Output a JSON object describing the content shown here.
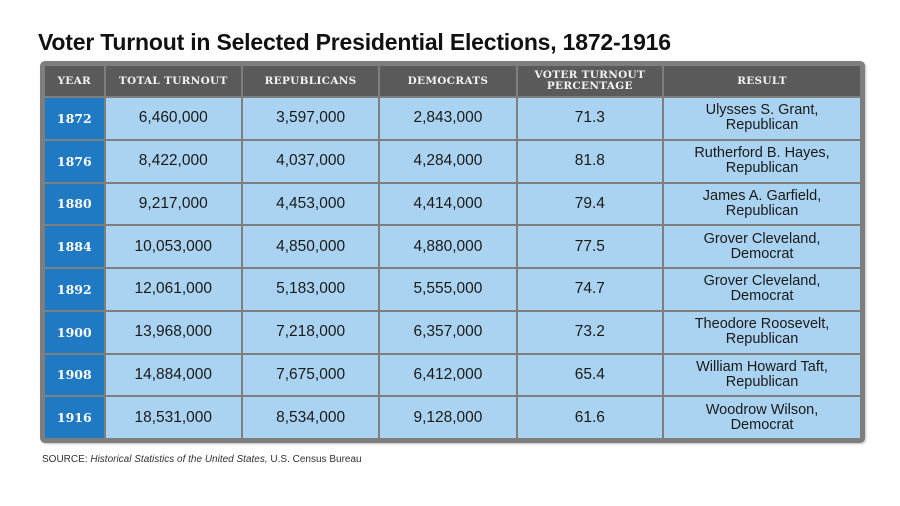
{
  "title": "Voter Turnout in Selected Presidential Elections, 1872-1916",
  "source": {
    "label": "SOURCE:",
    "title": "Historical Statistics of the United States,",
    "publisher": "U.S. Census Bureau"
  },
  "chart_data": {
    "type": "table",
    "title": "Voter Turnout in Selected Presidential Elections, 1872-1916",
    "columns": [
      "Year",
      "Total Turnout",
      "Republicans",
      "Democrats",
      "Voter Turnout Percentage",
      "Result"
    ],
    "rows": [
      {
        "year": "1872",
        "total": "6,460,000",
        "rep": "3,597,000",
        "dem": "2,843,000",
        "pct": "71.3",
        "winner": "Ulysses S. Grant,",
        "party": "Republican"
      },
      {
        "year": "1876",
        "total": "8,422,000",
        "rep": "4,037,000",
        "dem": "4,284,000",
        "pct": "81.8",
        "winner": "Rutherford B. Hayes,",
        "party": "Republican"
      },
      {
        "year": "1880",
        "total": "9,217,000",
        "rep": "4,453,000",
        "dem": "4,414,000",
        "pct": "79.4",
        "winner": "James A. Garfield,",
        "party": "Republican"
      },
      {
        "year": "1884",
        "total": "10,053,000",
        "rep": "4,850,000",
        "dem": "4,880,000",
        "pct": "77.5",
        "winner": "Grover Cleveland,",
        "party": "Democrat"
      },
      {
        "year": "1892",
        "total": "12,061,000",
        "rep": "5,183,000",
        "dem": "5,555,000",
        "pct": "74.7",
        "winner": "Grover Cleveland,",
        "party": "Democrat"
      },
      {
        "year": "1900",
        "total": "13,968,000",
        "rep": "7,218,000",
        "dem": "6,357,000",
        "pct": "73.2",
        "winner": "Theodore Roosevelt,",
        "party": "Republican"
      },
      {
        "year": "1908",
        "total": "14,884,000",
        "rep": "7,675,000",
        "dem": "6,412,000",
        "pct": "65.4",
        "winner": "William Howard Taft,",
        "party": "Republican"
      },
      {
        "year": "1916",
        "total": "18,531,000",
        "rep": "8,534,000",
        "dem": "9,128,000",
        "pct": "61.6",
        "winner": "Woodrow Wilson,",
        "party": "Democrat"
      }
    ]
  }
}
